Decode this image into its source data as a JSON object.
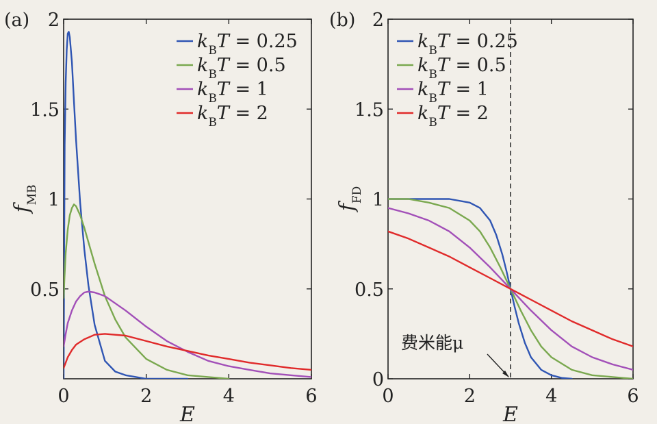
{
  "figure": {
    "background": "#f2efe9",
    "axis_color": "#222222"
  },
  "chart_data": [
    {
      "type": "line",
      "panel_label": "(a)",
      "xlabel": "E",
      "ylabel": "fMB",
      "ylabel_main": "f",
      "ylabel_sub": "MB",
      "xlim": [
        0,
        6
      ],
      "ylim": [
        0,
        2
      ],
      "xticks": [
        {
          "v": 0,
          "label": "0"
        },
        {
          "v": 2,
          "label": "2"
        },
        {
          "v": 4,
          "label": "4"
        },
        {
          "v": 6,
          "label": "6"
        }
      ],
      "yticks": [
        {
          "v": 0.5,
          "label": "0.5"
        },
        {
          "v": 1,
          "label": "1"
        },
        {
          "v": 1.5,
          "label": "1.5"
        },
        {
          "v": 2,
          "label": "2"
        }
      ],
      "legend_position": "top-right",
      "series": [
        {
          "name": "kBT = 0.25",
          "color": "#2f55b3",
          "x": [
            0,
            0.025,
            0.05,
            0.075,
            0.1,
            0.125,
            0.15,
            0.2,
            0.25,
            0.3,
            0.4,
            0.5,
            0.6,
            0.75,
            1.0,
            1.25,
            1.5,
            1.75,
            2.0,
            2.5,
            3.0
          ],
          "y": [
            0,
            1.3,
            1.65,
            1.83,
            1.92,
            1.93,
            1.9,
            1.76,
            1.54,
            1.33,
            0.98,
            0.72,
            0.52,
            0.3,
            0.1,
            0.04,
            0.02,
            0.01,
            0.0,
            0.0,
            0.0
          ]
        },
        {
          "name": "kBT = 0.5",
          "color": "#7aa84f",
          "x": [
            0,
            0.02,
            0.05,
            0.1,
            0.15,
            0.2,
            0.25,
            0.3,
            0.4,
            0.5,
            0.6,
            0.75,
            1.0,
            1.25,
            1.5,
            2.0,
            2.5,
            3.0,
            3.5,
            4.0
          ],
          "y": [
            0.45,
            0.56,
            0.7,
            0.83,
            0.91,
            0.95,
            0.97,
            0.96,
            0.91,
            0.84,
            0.76,
            0.64,
            0.46,
            0.33,
            0.23,
            0.11,
            0.05,
            0.02,
            0.01,
            0.0
          ]
        },
        {
          "name": "kBT = 1",
          "color": "#a24fb8",
          "x": [
            0,
            0.05,
            0.1,
            0.2,
            0.3,
            0.4,
            0.5,
            0.6,
            0.75,
            1.0,
            1.5,
            2.0,
            2.5,
            3.0,
            3.5,
            4.0,
            4.5,
            5.0,
            5.5,
            6.0
          ],
          "y": [
            0.18,
            0.25,
            0.31,
            0.38,
            0.43,
            0.46,
            0.48,
            0.485,
            0.48,
            0.46,
            0.38,
            0.29,
            0.21,
            0.15,
            0.1,
            0.07,
            0.05,
            0.03,
            0.02,
            0.01
          ]
        },
        {
          "name": "kBT = 2",
          "color": "#e02a2a",
          "x": [
            0,
            0.05,
            0.1,
            0.2,
            0.3,
            0.5,
            0.75,
            1.0,
            1.5,
            2.0,
            2.5,
            3.0,
            3.5,
            4.0,
            4.5,
            5.0,
            5.5,
            6.0
          ],
          "y": [
            0.06,
            0.09,
            0.12,
            0.16,
            0.19,
            0.22,
            0.245,
            0.25,
            0.24,
            0.21,
            0.18,
            0.155,
            0.13,
            0.11,
            0.09,
            0.075,
            0.06,
            0.05
          ]
        }
      ]
    },
    {
      "type": "line",
      "panel_label": "(b)",
      "xlabel": "E",
      "ylabel": "fFD",
      "ylabel_main": "f",
      "ylabel_sub": "FD",
      "xlim": [
        0,
        6
      ],
      "ylim": [
        0,
        2
      ],
      "xticks": [
        {
          "v": 0,
          "label": "0"
        },
        {
          "v": 2,
          "label": "2"
        },
        {
          "v": 4,
          "label": "4"
        },
        {
          "v": 6,
          "label": "6"
        }
      ],
      "yticks": [
        {
          "v": 0,
          "label": "0"
        },
        {
          "v": 0.5,
          "label": "0.5"
        },
        {
          "v": 1,
          "label": "1"
        },
        {
          "v": 1.5,
          "label": "1.5"
        },
        {
          "v": 2,
          "label": "2"
        }
      ],
      "legend_position": "top-left",
      "vline": {
        "x": 3
      },
      "annotation": {
        "text": "费米能μ",
        "x": 3,
        "y": 0
      },
      "series": [
        {
          "name": "kBT = 0.25",
          "color": "#2f55b3",
          "x": [
            0,
            1.0,
            1.5,
            2.0,
            2.25,
            2.5,
            2.65,
            2.8,
            2.9,
            3.0,
            3.1,
            3.2,
            3.35,
            3.5,
            3.75,
            4.0,
            4.25,
            4.5
          ],
          "y": [
            1.0,
            1.0,
            1.0,
            0.98,
            0.95,
            0.88,
            0.8,
            0.69,
            0.6,
            0.5,
            0.4,
            0.31,
            0.2,
            0.12,
            0.05,
            0.02,
            0.005,
            0.0
          ]
        },
        {
          "name": "kBT = 0.5",
          "color": "#7aa84f",
          "x": [
            0,
            0.5,
            1.0,
            1.5,
            2.0,
            2.25,
            2.5,
            2.75,
            3.0,
            3.25,
            3.5,
            3.75,
            4.0,
            4.5,
            5.0,
            5.5,
            6.0
          ],
          "y": [
            1.0,
            1.0,
            0.98,
            0.95,
            0.88,
            0.82,
            0.73,
            0.62,
            0.5,
            0.38,
            0.27,
            0.18,
            0.12,
            0.05,
            0.02,
            0.01,
            0.0
          ]
        },
        {
          "name": "kBT = 1",
          "color": "#a24fb8",
          "x": [
            0,
            0.5,
            1.0,
            1.5,
            2.0,
            2.5,
            3.0,
            3.5,
            4.0,
            4.5,
            5.0,
            5.5,
            6.0
          ],
          "y": [
            0.95,
            0.92,
            0.88,
            0.82,
            0.73,
            0.62,
            0.5,
            0.38,
            0.27,
            0.18,
            0.12,
            0.08,
            0.05
          ]
        },
        {
          "name": "kBT = 2",
          "color": "#e02a2a",
          "x": [
            0,
            0.5,
            1.0,
            1.5,
            2.0,
            2.5,
            3.0,
            3.5,
            4.0,
            4.5,
            5.0,
            5.5,
            6.0
          ],
          "y": [
            0.82,
            0.78,
            0.73,
            0.68,
            0.62,
            0.56,
            0.5,
            0.44,
            0.38,
            0.32,
            0.27,
            0.22,
            0.18
          ]
        }
      ]
    }
  ]
}
